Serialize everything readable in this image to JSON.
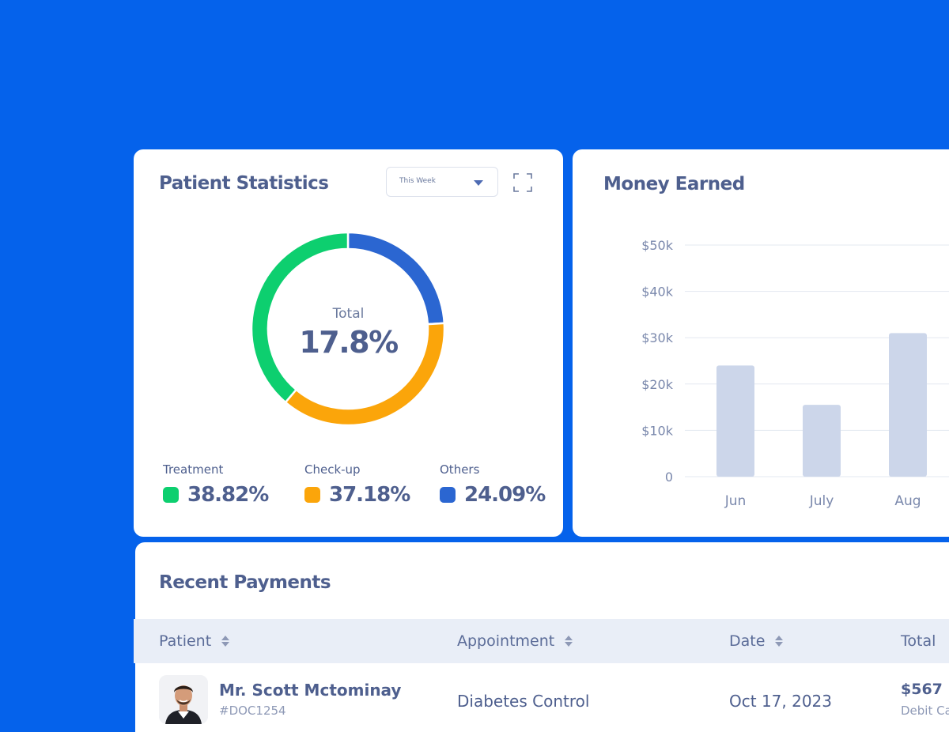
{
  "colors": {
    "background": "#0562EB",
    "treatment": "#0DCF6F",
    "checkup": "#FBA50A",
    "others": "#2B66D1",
    "bar": "#CCD6EA"
  },
  "patient_statistics": {
    "title": "Patient Statistics",
    "range_select": "This Week",
    "expand_icon": "expand-icon",
    "total_label": "Total",
    "total_value": "17.8%",
    "legend": [
      {
        "label": "Treatment",
        "value": "38.82%"
      },
      {
        "label": "Check-up",
        "value": "37.18%"
      },
      {
        "label": "Others",
        "value": "24.09%"
      }
    ]
  },
  "money_earned": {
    "title": "Money Earned"
  },
  "chart_data": {
    "type": "bar",
    "categories": [
      "Jun",
      "July",
      "Aug"
    ],
    "values": [
      24000,
      15500,
      31000
    ],
    "y_ticks": [
      "0",
      "$10k",
      "$20k",
      "$30k",
      "$40k",
      "$50k"
    ],
    "ylim": [
      0,
      50000
    ],
    "grid": true
  },
  "recent_payments": {
    "title": "Recent Payments",
    "columns": [
      "Patient",
      "Appointment",
      "Date",
      "Total"
    ],
    "rows": [
      {
        "patient_name": "Mr. Scott Mctominay",
        "patient_id": "#DOC1254",
        "appointment": "Diabetes Control",
        "date": "Oct 17, 2023",
        "total": "$567",
        "method": "Debit Card"
      }
    ]
  }
}
